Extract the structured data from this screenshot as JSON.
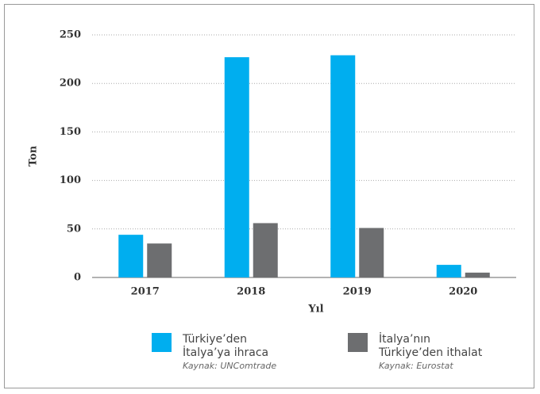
{
  "chart_data": {
    "type": "bar",
    "categories": [
      "2017",
      "2018",
      "2019",
      "2020"
    ],
    "series": [
      {
        "name": "Türkiye’den İtalya’ya ihraca",
        "source": "Kaynak: UNComtrade",
        "color": "#00aeef",
        "values": [
          44,
          227,
          229,
          13
        ]
      },
      {
        "name": "İtalya’nın Türkiye’den ithalat",
        "source": "Kaynak: Eurostat",
        "color": "#6d6e70",
        "values": [
          35,
          56,
          51,
          5
        ]
      }
    ],
    "x_label": "Yıl",
    "y_label": "Ton",
    "ylim": [
      0,
      250
    ],
    "yticks": [
      0,
      50,
      100,
      150,
      200,
      250
    ],
    "grid": true
  }
}
